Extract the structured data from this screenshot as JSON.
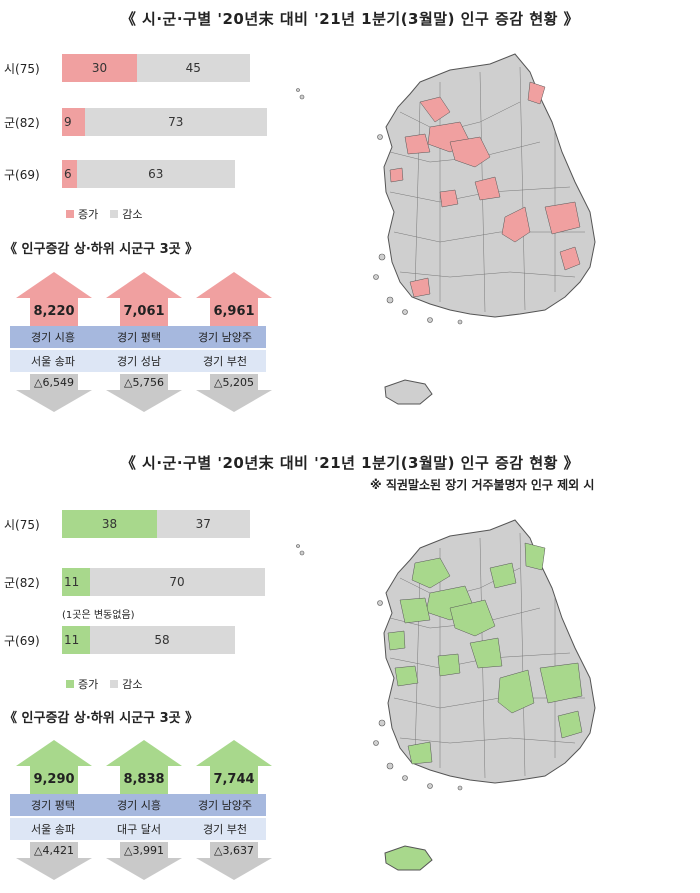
{
  "colors": {
    "increase_red": "#f0a0a0",
    "increase_green": "#a8d88c",
    "decrease": "#d9d9d9",
    "header_blue": "#a6b8de",
    "row_blue": "#dde6f5",
    "map_gray": "#cfcfcf"
  },
  "panel1": {
    "title": "《 시·군·구별 '20년末 대비 '21년 1분기(3월말) 인구 증감 현황 》",
    "legend": {
      "increase": "증가",
      "decrease": "감소"
    },
    "subtitle": "《 인구증감 상·하위 시군구 3곳 》",
    "top3": [
      {
        "value": "8,220",
        "region": "경기 시흥"
      },
      {
        "value": "7,061",
        "region": "경기 평택"
      },
      {
        "value": "6,961",
        "region": "경기 남양주"
      }
    ],
    "bottom3": [
      {
        "value": "△6,549",
        "region": "서울 송파"
      },
      {
        "value": "△5,756",
        "region": "경기 성남"
      },
      {
        "value": "△5,205",
        "region": "경기 부천"
      }
    ]
  },
  "panel2": {
    "title": "《 시·군·구별 '20년末 대비 '21년 1분기(3월말) 인구 증감 현황 》",
    "note": "※ 직권말소된 장기 거주불명자 인구 제외 시",
    "legend": {
      "increase": "증가",
      "decrease": "감소"
    },
    "gun_note": "(1곳은 변동없음)",
    "subtitle": "《 인구증감 상·하위 시군구 3곳 》",
    "top3": [
      {
        "value": "9,290",
        "region": "경기 평택"
      },
      {
        "value": "8,838",
        "region": "경기 시흥"
      },
      {
        "value": "7,744",
        "region": "경기 남양주"
      }
    ],
    "bottom3": [
      {
        "value": "△4,421",
        "region": "서울 송파"
      },
      {
        "value": "△3,991",
        "region": "대구 달서"
      },
      {
        "value": "△3,637",
        "region": "경기 부천"
      }
    ]
  },
  "chart_data": [
    {
      "type": "bar",
      "categories": [
        "시(75)",
        "군(82)",
        "구(69)"
      ],
      "series": [
        {
          "name": "증가",
          "values": [
            30,
            9,
            6
          ]
        },
        {
          "name": "감소",
          "values": [
            45,
            73,
            63
          ]
        }
      ]
    },
    {
      "type": "bar",
      "categories": [
        "시(75)",
        "군(82)",
        "구(69)"
      ],
      "series": [
        {
          "name": "증가",
          "values": [
            38,
            11,
            11
          ]
        },
        {
          "name": "감소",
          "values": [
            37,
            70,
            58
          ]
        }
      ]
    }
  ]
}
